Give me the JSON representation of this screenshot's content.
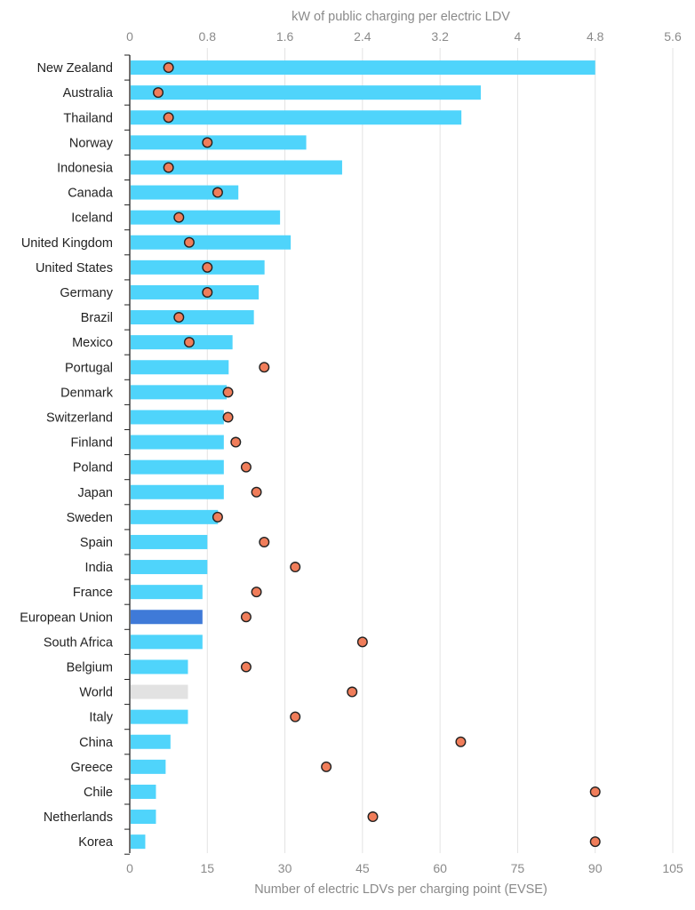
{
  "chart_data": {
    "type": "bar",
    "top_axis_label": "kW of public charging per electric LDV",
    "bottom_axis_label": "Number of electric LDVs per charging point (EVSE)",
    "top_axis": {
      "range": [
        0,
        5.6
      ],
      "ticks": [
        "0",
        "0.8",
        "1.6",
        "2.4",
        "3.2",
        "4",
        "4.8",
        "5.6"
      ]
    },
    "bottom_axis": {
      "range": [
        0,
        105
      ],
      "ticks": [
        "0",
        "15",
        "30",
        "45",
        "60",
        "75",
        "90",
        "105"
      ]
    },
    "grid": true,
    "categories": [
      "New Zealand",
      "Australia",
      "Thailand",
      "Norway",
      "Indonesia",
      "Canada",
      "Iceland",
      "United Kingdom",
      "United States",
      "Germany",
      "Brazil",
      "Mexico",
      "Portugal",
      "Denmark",
      "Switzerland",
      "Finland",
      "Poland",
      "Japan",
      "Sweden",
      "Spain",
      "India",
      "France",
      "European Union",
      "South Africa",
      "Belgium",
      "World",
      "Italy",
      "China",
      "Greece",
      "Chile",
      "Netherlands",
      "Korea"
    ],
    "series": [
      {
        "axis": "top",
        "mark": "bar",
        "values": [
          4.8,
          3.62,
          3.42,
          1.82,
          2.19,
          1.12,
          1.55,
          1.66,
          1.39,
          1.33,
          1.28,
          1.06,
          1.02,
          1.0,
          0.97,
          0.97,
          0.97,
          0.97,
          0.91,
          0.8,
          0.8,
          0.75,
          0.75,
          0.75,
          0.6,
          0.6,
          0.6,
          0.42,
          0.37,
          0.27,
          0.27,
          0.16
        ]
      },
      {
        "axis": "bottom",
        "mark": "dot",
        "values": [
          7.5,
          5.5,
          7.5,
          15,
          7.5,
          17,
          9.5,
          11.5,
          15,
          15,
          9.5,
          11.5,
          26,
          19,
          19,
          20.5,
          22.5,
          24.5,
          17,
          26,
          32,
          24.5,
          22.5,
          45,
          22.5,
          43,
          32,
          64,
          38,
          90,
          47,
          90
        ]
      }
    ],
    "colors": {
      "bar": "#4fd4fb",
      "european_union_bar": "#3f7ad8",
      "world_bar": "#e2e2e2",
      "dot_fill": "#f07d5a",
      "dot_stroke": "#222222"
    }
  }
}
